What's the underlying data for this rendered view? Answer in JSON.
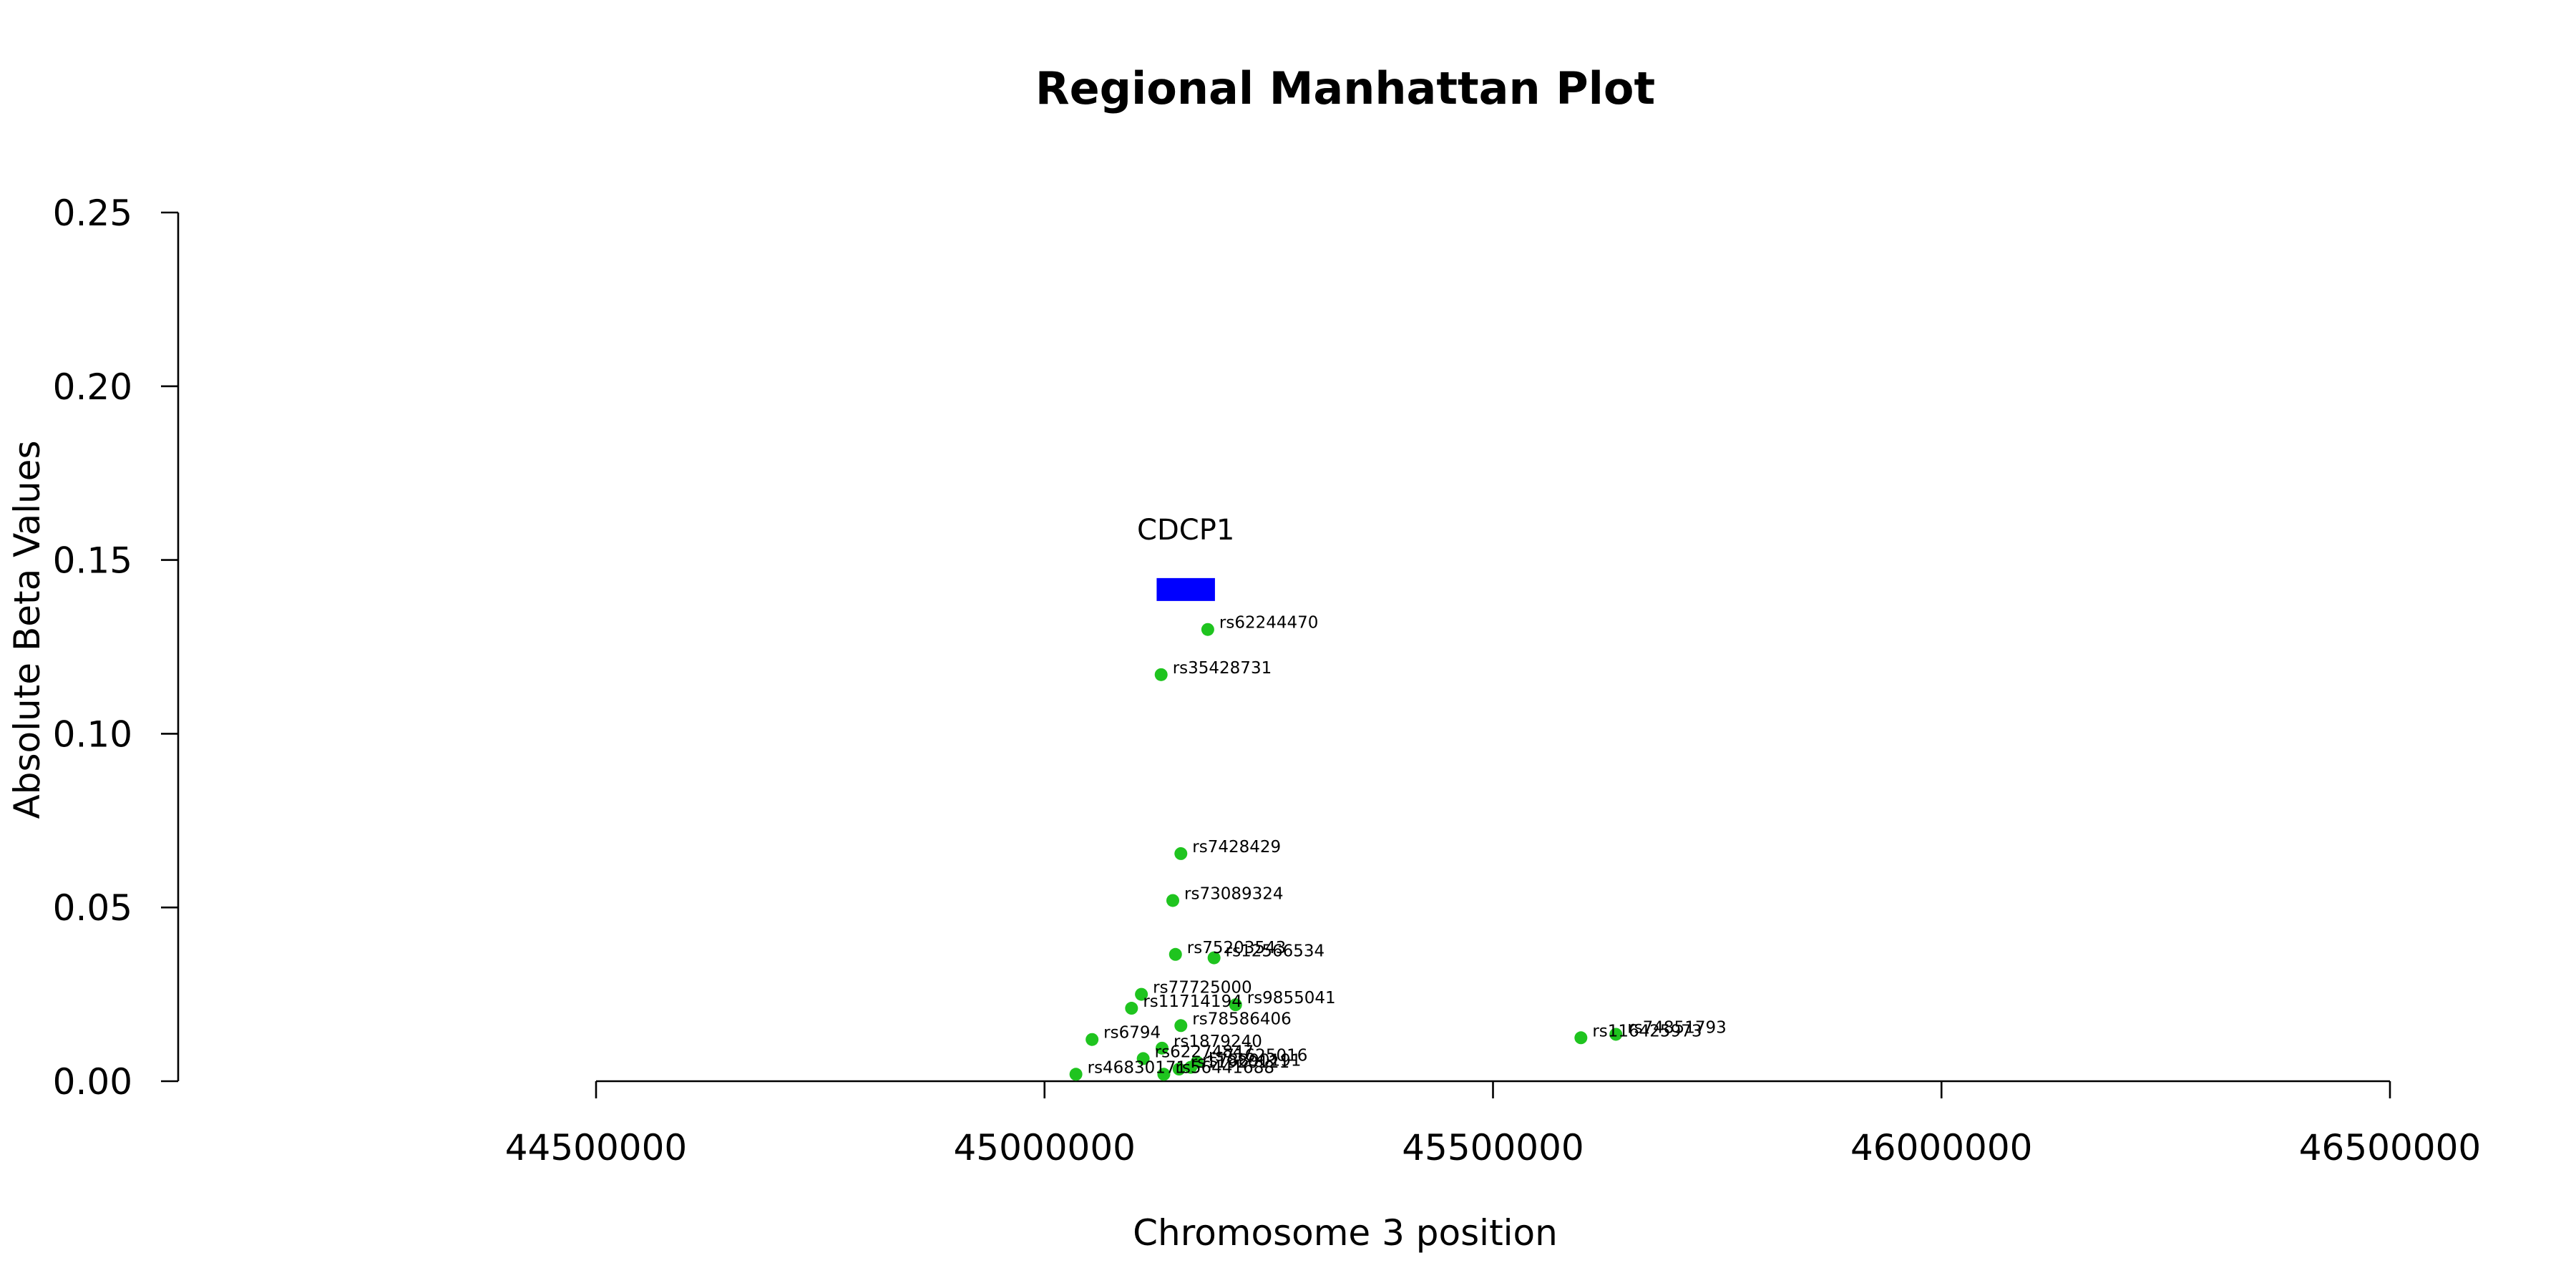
{
  "chart_data": {
    "type": "scatter",
    "title": "Regional Manhattan Plot",
    "xlabel": "Chromosome 3 position",
    "ylabel": "Absolute Beta Values",
    "xlim": [
      44500000,
      46500000
    ],
    "ylim": [
      0,
      0.25
    ],
    "x_ticks": [
      44500000,
      45000000,
      45500000,
      46000000,
      46500000
    ],
    "x_tick_labels": [
      "44500000",
      "45000000",
      "45500000",
      "46000000",
      "46500000"
    ],
    "y_ticks": [
      0,
      0.05,
      0.1,
      0.15,
      0.2,
      0.25
    ],
    "y_tick_labels": [
      "0.00",
      "0.05",
      "0.10",
      "0.15",
      "0.20",
      "0.25"
    ],
    "grid": false,
    "point_color": "#1fc41f",
    "gene_color": "#0000ff",
    "points": [
      {
        "label": "rs62244470",
        "x": 45182000,
        "y": 0.13
      },
      {
        "label": "rs35428731",
        "x": 45130000,
        "y": 0.117
      },
      {
        "label": "rs7428429",
        "x": 45152000,
        "y": 0.0655
      },
      {
        "label": "rs73089324",
        "x": 45143000,
        "y": 0.052
      },
      {
        "label": "rs75203543",
        "x": 45146000,
        "y": 0.0365
      },
      {
        "label": "rs12566534",
        "x": 45189000,
        "y": 0.0355
      },
      {
        "label": "rs77725000",
        "x": 45108000,
        "y": 0.025
      },
      {
        "label": "rs11714194",
        "x": 45097000,
        "y": 0.021
      },
      {
        "label": "rs9855041",
        "x": 45213000,
        "y": 0.022
      },
      {
        "label": "rs78586406",
        "x": 45152000,
        "y": 0.016
      },
      {
        "label": "rs6794",
        "x": 45053000,
        "y": 0.012
      },
      {
        "label": "rs1879240",
        "x": 45131000,
        "y": 0.0095
      },
      {
        "label": "rs62274847",
        "x": 45110000,
        "y": 0.0065
      },
      {
        "label": "rs71625016",
        "x": 45170000,
        "y": 0.0055
      },
      {
        "label": "rs78890191",
        "x": 45163000,
        "y": 0.004
      },
      {
        "label": "rs11920121",
        "x": 45150000,
        "y": 0.0035
      },
      {
        "label": "rs46830171",
        "x": 45035000,
        "y": 0.002
      },
      {
        "label": "rs56441688",
        "x": 45133000,
        "y": 0.002
      },
      {
        "label": "rs116425973",
        "x": 45598000,
        "y": 0.0125
      },
      {
        "label": "rs74851793",
        "x": 45637000,
        "y": 0.0135
      }
    ],
    "genes": [
      {
        "name": "CDCP1",
        "start": 45125000,
        "end": 45190000,
        "y": 0.1415
      }
    ]
  }
}
